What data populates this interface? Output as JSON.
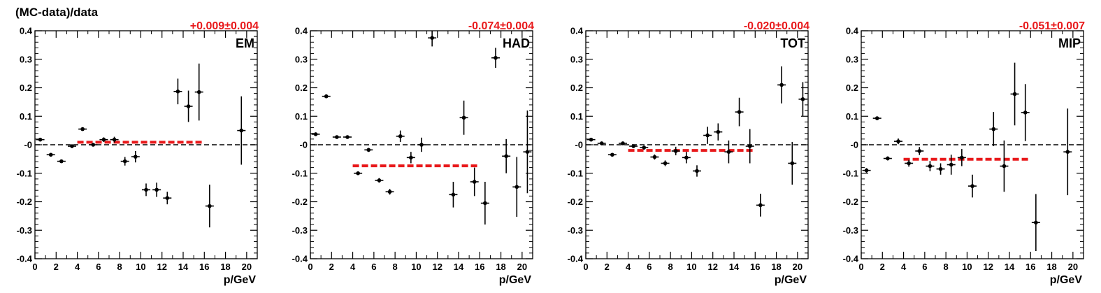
{
  "figure": {
    "ylabel": "(MC-data)/data"
  },
  "colors": {
    "fit_line": "#e8191b",
    "points": "#000000",
    "zero_line": "#000000"
  },
  "chart_data": [
    {
      "type": "scatter",
      "panel_label": "EM",
      "fit_result": "+0.009±0.004",
      "fit_value": 0.009,
      "fit_range": [
        4,
        16
      ],
      "xlabel": "p/GeV",
      "ylabel": "(MC-data)/data",
      "xlim": [
        0,
        21
      ],
      "ylim": [
        -0.4,
        0.4
      ],
      "x_ticks": [
        "0",
        "2",
        "4",
        "6",
        "8",
        "10",
        "12",
        "14",
        "16",
        "18",
        "20"
      ],
      "y_ticks": [
        "-0.4",
        "-0.3",
        "-0.2",
        "-0.1",
        "-0",
        "0.1",
        "0.2",
        "0.3",
        "0.4"
      ],
      "reference_line_y": 0,
      "points": [
        {
          "x": 0.5,
          "y": 0.018,
          "err": 0.005
        },
        {
          "x": 1.5,
          "y": -0.035,
          "err": 0.005
        },
        {
          "x": 2.5,
          "y": -0.058,
          "err": 0.006
        },
        {
          "x": 3.5,
          "y": -0.005,
          "err": 0.005
        },
        {
          "x": 4.5,
          "y": 0.055,
          "err": 0.006
        },
        {
          "x": 5.5,
          "y": 0.0,
          "err": 0.006
        },
        {
          "x": 6.5,
          "y": 0.018,
          "err": 0.008
        },
        {
          "x": 7.5,
          "y": 0.018,
          "err": 0.01
        },
        {
          "x": 8.5,
          "y": -0.058,
          "err": 0.015
        },
        {
          "x": 9.5,
          "y": -0.042,
          "err": 0.02
        },
        {
          "x": 10.5,
          "y": -0.158,
          "err": 0.022
        },
        {
          "x": 11.5,
          "y": -0.158,
          "err": 0.025
        },
        {
          "x": 12.5,
          "y": -0.187,
          "err": 0.022
        },
        {
          "x": 13.5,
          "y": 0.187,
          "err": 0.045
        },
        {
          "x": 14.5,
          "y": 0.135,
          "err": 0.055
        },
        {
          "x": 15.5,
          "y": 0.185,
          "err": 0.1
        },
        {
          "x": 16.5,
          "y": -0.215,
          "err": 0.075
        },
        {
          "x": 19.5,
          "y": 0.05,
          "err": 0.12
        }
      ]
    },
    {
      "type": "scatter",
      "panel_label": "HAD",
      "fit_result": "-0.074±0.004",
      "fit_value": -0.074,
      "fit_range": [
        4,
        16
      ],
      "xlabel": "p/GeV",
      "ylabel": "",
      "xlim": [
        0,
        21
      ],
      "ylim": [
        -0.4,
        0.4
      ],
      "x_ticks": [
        "0",
        "2",
        "4",
        "6",
        "8",
        "10",
        "12",
        "14",
        "16",
        "18",
        "20"
      ],
      "y_ticks": [
        "-0.4",
        "-0.3",
        "-0.2",
        "-0.1",
        "-0",
        "0.1",
        "0.2",
        "0.3",
        "0.4"
      ],
      "reference_line_y": 0,
      "points": [
        {
          "x": 0.5,
          "y": 0.037,
          "err": 0.005
        },
        {
          "x": 1.5,
          "y": 0.17,
          "err": 0.005
        },
        {
          "x": 2.5,
          "y": 0.027,
          "err": 0.005
        },
        {
          "x": 3.5,
          "y": 0.027,
          "err": 0.005
        },
        {
          "x": 4.5,
          "y": -0.1,
          "err": 0.006
        },
        {
          "x": 5.5,
          "y": -0.018,
          "err": 0.007
        },
        {
          "x": 6.5,
          "y": -0.125,
          "err": 0.008
        },
        {
          "x": 7.5,
          "y": -0.165,
          "err": 0.01
        },
        {
          "x": 8.5,
          "y": 0.03,
          "err": 0.02
        },
        {
          "x": 9.5,
          "y": -0.045,
          "err": 0.02
        },
        {
          "x": 10.5,
          "y": 0.0,
          "err": 0.025
        },
        {
          "x": 11.5,
          "y": 0.375,
          "err": 0.03
        },
        {
          "x": 13.5,
          "y": -0.175,
          "err": 0.045
        },
        {
          "x": 14.5,
          "y": 0.095,
          "err": 0.06
        },
        {
          "x": 15.5,
          "y": -0.13,
          "err": 0.05
        },
        {
          "x": 16.5,
          "y": -0.205,
          "err": 0.075
        },
        {
          "x": 17.5,
          "y": 0.305,
          "err": 0.035
        },
        {
          "x": 18.5,
          "y": -0.04,
          "err": 0.06
        },
        {
          "x": 19.5,
          "y": -0.148,
          "err": 0.105
        },
        {
          "x": 20.5,
          "y": -0.025,
          "err": 0.145
        }
      ]
    },
    {
      "type": "scatter",
      "panel_label": "TOT",
      "fit_result": "-0.020±0.004",
      "fit_value": -0.02,
      "fit_range": [
        4,
        16
      ],
      "xlabel": "p/GeV",
      "ylabel": "",
      "xlim": [
        0,
        21
      ],
      "ylim": [
        -0.4,
        0.4
      ],
      "x_ticks": [
        "0",
        "2",
        "4",
        "6",
        "8",
        "10",
        "12",
        "14",
        "16",
        "18",
        "20"
      ],
      "y_ticks": [
        "-0.4",
        "-0.3",
        "-0.2",
        "-0.1",
        "-0",
        "0.1",
        "0.2",
        "0.3",
        "0.4"
      ],
      "reference_line_y": 0,
      "points": [
        {
          "x": 0.5,
          "y": 0.018,
          "err": 0.005
        },
        {
          "x": 1.5,
          "y": 0.005,
          "err": 0.005
        },
        {
          "x": 2.5,
          "y": -0.035,
          "err": 0.005
        },
        {
          "x": 3.5,
          "y": 0.005,
          "err": 0.005
        },
        {
          "x": 4.5,
          "y": -0.005,
          "err": 0.006
        },
        {
          "x": 5.5,
          "y": -0.01,
          "err": 0.007
        },
        {
          "x": 6.5,
          "y": -0.043,
          "err": 0.009
        },
        {
          "x": 7.5,
          "y": -0.065,
          "err": 0.01
        },
        {
          "x": 8.5,
          "y": -0.022,
          "err": 0.015
        },
        {
          "x": 9.5,
          "y": -0.045,
          "err": 0.02
        },
        {
          "x": 10.5,
          "y": -0.092,
          "err": 0.02
        },
        {
          "x": 11.5,
          "y": 0.033,
          "err": 0.03
        },
        {
          "x": 12.5,
          "y": 0.045,
          "err": 0.03
        },
        {
          "x": 13.5,
          "y": -0.025,
          "err": 0.04
        },
        {
          "x": 14.5,
          "y": 0.115,
          "err": 0.05
        },
        {
          "x": 15.5,
          "y": -0.005,
          "err": 0.06
        },
        {
          "x": 16.5,
          "y": -0.212,
          "err": 0.04
        },
        {
          "x": 18.5,
          "y": 0.21,
          "err": 0.065
        },
        {
          "x": 19.5,
          "y": -0.065,
          "err": 0.075
        },
        {
          "x": 20.5,
          "y": 0.16,
          "err": 0.06
        }
      ]
    },
    {
      "type": "scatter",
      "panel_label": "MIP",
      "fit_result": "-0.051±0.007",
      "fit_value": -0.051,
      "fit_range": [
        4,
        16
      ],
      "xlabel": "p/GeV",
      "ylabel": "",
      "xlim": [
        0,
        21
      ],
      "ylim": [
        -0.4,
        0.4
      ],
      "x_ticks": [
        "0",
        "2",
        "4",
        "6",
        "8",
        "10",
        "12",
        "14",
        "16",
        "18",
        "20"
      ],
      "y_ticks": [
        "-0.4",
        "-0.3",
        "-0.2",
        "-0.1",
        "-0",
        "0.1",
        "0.2",
        "0.3",
        "0.4"
      ],
      "reference_line_y": 0,
      "points": [
        {
          "x": 0.5,
          "y": -0.09,
          "err": 0.008
        },
        {
          "x": 1.5,
          "y": 0.093,
          "err": 0.006
        },
        {
          "x": 2.5,
          "y": -0.048,
          "err": 0.007
        },
        {
          "x": 3.5,
          "y": 0.012,
          "err": 0.01
        },
        {
          "x": 4.5,
          "y": -0.065,
          "err": 0.012
        },
        {
          "x": 5.5,
          "y": -0.022,
          "err": 0.014
        },
        {
          "x": 6.5,
          "y": -0.075,
          "err": 0.018
        },
        {
          "x": 7.5,
          "y": -0.085,
          "err": 0.02
        },
        {
          "x": 8.5,
          "y": -0.07,
          "err": 0.035
        },
        {
          "x": 9.5,
          "y": -0.045,
          "err": 0.03
        },
        {
          "x": 10.5,
          "y": -0.145,
          "err": 0.04
        },
        {
          "x": 12.5,
          "y": 0.055,
          "err": 0.06
        },
        {
          "x": 13.5,
          "y": -0.075,
          "err": 0.09
        },
        {
          "x": 14.5,
          "y": 0.178,
          "err": 0.11
        },
        {
          "x": 15.5,
          "y": 0.113,
          "err": 0.1
        },
        {
          "x": 16.5,
          "y": -0.273,
          "err": 0.1
        },
        {
          "x": 19.5,
          "y": -0.025,
          "err": 0.152
        }
      ]
    }
  ]
}
